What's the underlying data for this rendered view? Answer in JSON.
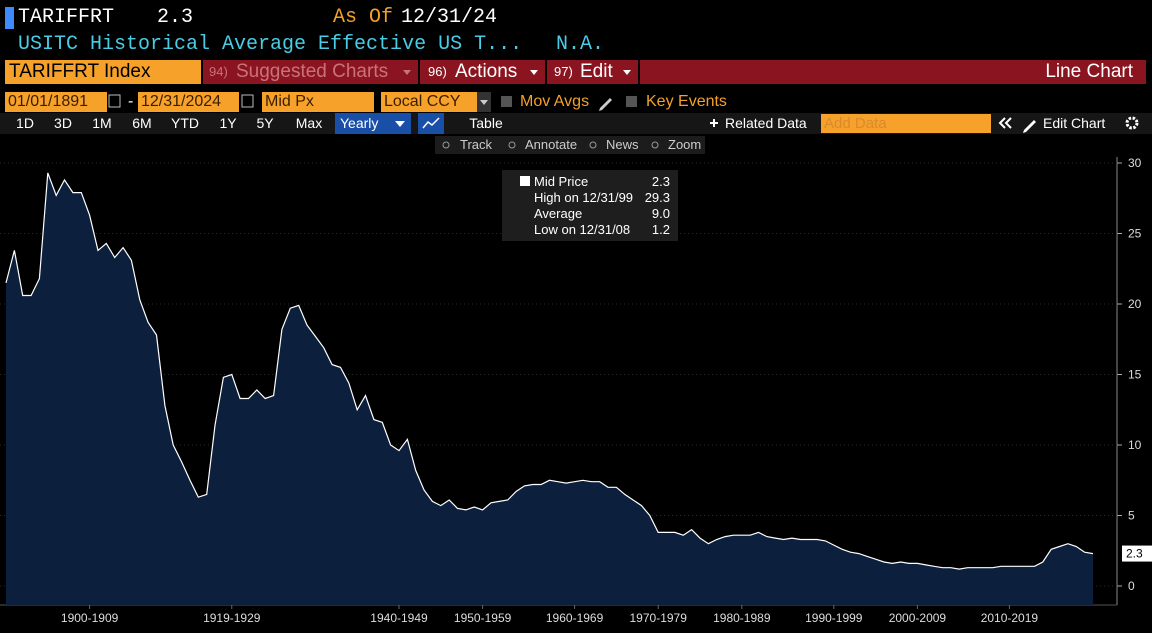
{
  "header": {
    "ticker": "TARIFFRT",
    "last": "2.3",
    "as_of_label": "As Of",
    "as_of": "12/31/24",
    "description": "USITC Historical Average Effective US T...",
    "change": "N.A."
  },
  "toolbar": {
    "security": "TARIFFRT Index",
    "menus": [
      {
        "num": "94)",
        "label": "Suggested Charts"
      },
      {
        "num": "96)",
        "label": "Actions"
      },
      {
        "num": "97)",
        "label": "Edit"
      }
    ],
    "chart_type": "Line Chart"
  },
  "controls": {
    "start_date": "01/01/1891",
    "separator": "-",
    "end_date": "12/31/2024",
    "field": "Mid Px",
    "currency": "Local CCY",
    "mov_avgs": "Mov Avgs",
    "key_events": "Key Events"
  },
  "ranges": [
    "1D",
    "3D",
    "1M",
    "6M",
    "YTD",
    "1Y",
    "5Y",
    "Max"
  ],
  "periodicity": "Yearly",
  "table": "Table",
  "related": "Related Data",
  "add_data": "Add Data",
  "edit_chart": "Edit Chart",
  "tools": [
    "Track",
    "Annotate",
    "News",
    "Zoom"
  ],
  "legend": {
    "rows": [
      {
        "label": "Mid Price",
        "value": "2.3"
      },
      {
        "label": "High on 12/31/99",
        "value": "29.3"
      },
      {
        "label": "Average",
        "value": "9.0"
      },
      {
        "label": "Low on 12/31/08",
        "value": "1.2"
      }
    ]
  },
  "chart_data": {
    "type": "area",
    "color": "#ffffff",
    "fill": "#0c1f3c",
    "grid": true,
    "x": [
      1894,
      1895,
      1896,
      1897,
      1898,
      1899,
      1900,
      1901,
      1902,
      1903,
      1904,
      1905,
      1906,
      1907,
      1908,
      1909,
      1910,
      1911,
      1912,
      1913,
      1914,
      1915,
      1916,
      1917,
      1918,
      1919,
      1920,
      1921,
      1922,
      1923,
      1924,
      1925,
      1926,
      1927,
      1928,
      1929,
      1930,
      1931,
      1932,
      1933,
      1934,
      1935,
      1936,
      1937,
      1938,
      1939,
      1940,
      1941,
      1942,
      1943,
      1944,
      1945,
      1946,
      1947,
      1948,
      1949,
      1950,
      1951,
      1952,
      1953,
      1954,
      1955,
      1956,
      1957,
      1958,
      1959,
      1960,
      1961,
      1962,
      1963,
      1964,
      1965,
      1966,
      1967,
      1968,
      1969,
      1970,
      1971,
      1972,
      1973,
      1974,
      1975,
      1976,
      1977,
      1978,
      1979,
      1980,
      1981,
      1982,
      1983,
      1984,
      1985,
      1986,
      1987,
      1988,
      1989,
      1990,
      1991,
      1992,
      1993,
      1994,
      1995,
      1996,
      1997,
      1998,
      1999,
      2000,
      2001,
      2002,
      2003,
      2004,
      2005,
      2006,
      2007,
      2008,
      2009,
      2010,
      2011,
      2012,
      2013,
      2014,
      2015,
      2016,
      2017,
      2018,
      2019,
      2020,
      2021,
      2022,
      2023,
      2024
    ],
    "values": [
      21.5,
      23.8,
      20.6,
      20.6,
      21.8,
      29.3,
      27.7,
      28.8,
      27.9,
      27.9,
      26.3,
      23.8,
      24.3,
      23.3,
      24.0,
      23.1,
      20.3,
      18.7,
      17.8,
      12.8,
      10.0,
      8.8,
      7.5,
      6.3,
      6.5,
      11.4,
      14.8,
      15.0,
      13.3,
      13.3,
      13.9,
      13.3,
      13.5,
      18.2,
      19.7,
      19.9,
      18.5,
      17.7,
      16.9,
      15.7,
      15.5,
      14.4,
      12.5,
      13.5,
      11.8,
      11.6,
      10.0,
      9.6,
      10.4,
      8.2,
      6.8,
      6.0,
      5.7,
      6.1,
      5.5,
      5.4,
      5.6,
      5.4,
      5.9,
      6.0,
      6.1,
      6.7,
      7.1,
      7.2,
      7.2,
      7.5,
      7.4,
      7.3,
      7.4,
      7.5,
      7.4,
      7.4,
      7.0,
      7.0,
      6.5,
      6.1,
      5.7,
      5.0,
      3.8,
      3.8,
      3.8,
      3.6,
      4.0,
      3.4,
      3.0,
      3.3,
      3.5,
      3.6,
      3.6,
      3.6,
      3.8,
      3.5,
      3.4,
      3.3,
      3.4,
      3.3,
      3.3,
      3.3,
      3.2,
      2.9,
      2.6,
      2.4,
      2.3,
      2.1,
      1.9,
      1.7,
      1.6,
      1.7,
      1.6,
      1.6,
      1.5,
      1.4,
      1.3,
      1.3,
      1.2,
      1.3,
      1.3,
      1.3,
      1.3,
      1.4,
      1.4,
      1.4,
      1.4,
      1.4,
      1.7,
      2.6,
      2.8,
      3.0,
      2.8,
      2.4,
      2.3
    ],
    "xlim": [
      1894,
      2024
    ],
    "ylim": [
      0,
      30
    ],
    "yticks": [
      0,
      5,
      10,
      15,
      20,
      25,
      30
    ],
    "xticks": [
      {
        "value": 1904,
        "label": "1900-1909"
      },
      {
        "value": 1921,
        "label": "1919-1929"
      },
      {
        "value": 1941,
        "label": "1940-1949"
      },
      {
        "value": 1951,
        "label": "1950-1959"
      },
      {
        "value": 1962,
        "label": "1960-1969"
      },
      {
        "value": 1972,
        "label": "1970-1979"
      },
      {
        "value": 1982,
        "label": "1980-1989"
      },
      {
        "value": 1993,
        "label": "1990-1999"
      },
      {
        "value": 2003,
        "label": "2000-2009"
      },
      {
        "value": 2014,
        "label": "2010-2019"
      }
    ]
  }
}
